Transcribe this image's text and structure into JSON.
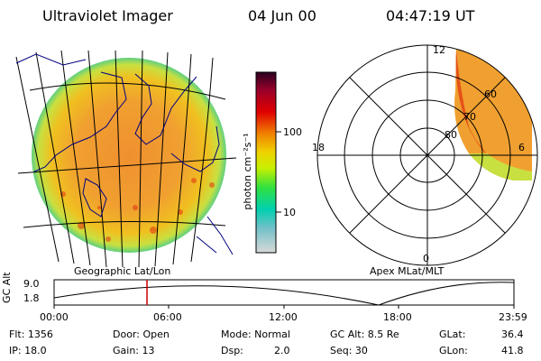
{
  "header": {
    "title": "Ultraviolet Imager",
    "date": "04 Jun 00",
    "time": "04:47:19 UT"
  },
  "colorbar": {
    "unit_label": "photon cm⁻²s⁻¹",
    "ticks": [
      "100",
      "10"
    ]
  },
  "polar_plot": {
    "mlt_labels": [
      "12",
      "18",
      "6",
      "0"
    ],
    "lat_labels": [
      "60",
      "70",
      "80"
    ]
  },
  "panel_labels": {
    "left": "Geographic Lat/Lon",
    "right": "Apex MLat/MLT"
  },
  "altitude_strip": {
    "axis_label": "GC Alt",
    "y_ticks": [
      "9.0",
      "1.8"
    ],
    "x_ticks": [
      "00:00",
      "06:00",
      "12:00",
      "18:00",
      "23:59"
    ]
  },
  "info": {
    "flt": "Flt: 1356",
    "door": "Door: Open",
    "mode": "Mode: Normal",
    "gc_alt": "GC Alt: 8.5 Re",
    "glat_label": "GLat:",
    "glat_value": "36.4",
    "ip": "IP: 18.0",
    "gain": "Gain: 13",
    "dsp_label": "Dsp:",
    "dsp_value": "2.0",
    "seq": "Seq: 30",
    "glon_label": "GLon:",
    "glon_value": "41.8"
  },
  "colors": {
    "background": "#ffffff",
    "marker": "#cc0000",
    "coast": "#000080"
  },
  "colorbar_stops": [
    "#d8d8d8",
    "#6fc0c8",
    "#00d0b0",
    "#30e040",
    "#c8f000",
    "#f0d000",
    "#f08000",
    "#e00000",
    "#9a002a",
    "#2a0020"
  ]
}
